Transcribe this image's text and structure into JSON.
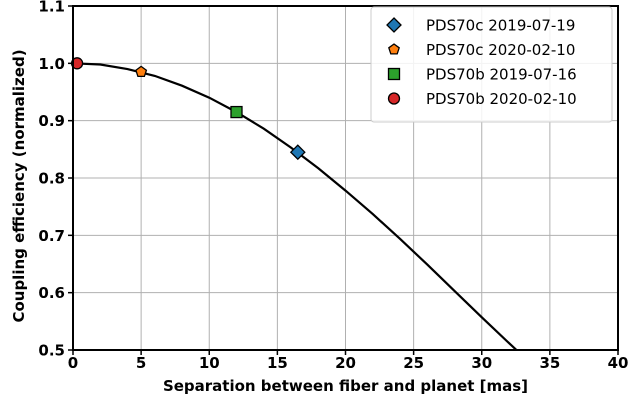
{
  "chart_data": {
    "type": "scatter",
    "title": "",
    "xlabel": "Separation between fiber and planet [mas]",
    "ylabel": "Coupling efficiency (normalized)",
    "xlim": [
      0,
      40
    ],
    "ylim": [
      0.5,
      1.1
    ],
    "xticks": [
      0,
      5,
      10,
      15,
      20,
      25,
      30,
      35,
      40
    ],
    "yticks": [
      0.5,
      0.6,
      0.7,
      0.8,
      0.9,
      1.0,
      1.1
    ],
    "xtick_labels": [
      "0",
      "5",
      "10",
      "15",
      "20",
      "25",
      "30",
      "35",
      "40"
    ],
    "ytick_labels": [
      "0.5",
      "0.6",
      "0.7",
      "0.8",
      "0.9",
      "1.0",
      "1.1"
    ],
    "grid": true,
    "legend_position": "top-right",
    "curve": {
      "color": "#000000",
      "x": [
        0,
        2,
        4,
        6,
        8,
        10,
        12,
        14,
        16,
        18,
        20,
        22,
        24,
        26,
        28,
        30,
        32,
        33
      ],
      "y": [
        1.0,
        0.998,
        0.99,
        0.978,
        0.961,
        0.94,
        0.915,
        0.886,
        0.853,
        0.817,
        0.778,
        0.737,
        0.694,
        0.649,
        0.603,
        0.557,
        0.512,
        0.49
      ]
    },
    "series": [
      {
        "name": "PDS70c 2019-07-19",
        "marker": "diamond",
        "color": "#1f77b4",
        "x": 16.5,
        "y": 0.845
      },
      {
        "name": "PDS70c 2020-02-10",
        "marker": "pentagon",
        "color": "#ff7f0e",
        "x": 5.0,
        "y": 0.985
      },
      {
        "name": "PDS70b 2019-07-16",
        "marker": "square",
        "color": "#2ca02c",
        "x": 12.0,
        "y": 0.915
      },
      {
        "name": "PDS70b 2020-02-10",
        "marker": "circle",
        "color": "#d62728",
        "x": 0.3,
        "y": 1.0
      }
    ]
  }
}
